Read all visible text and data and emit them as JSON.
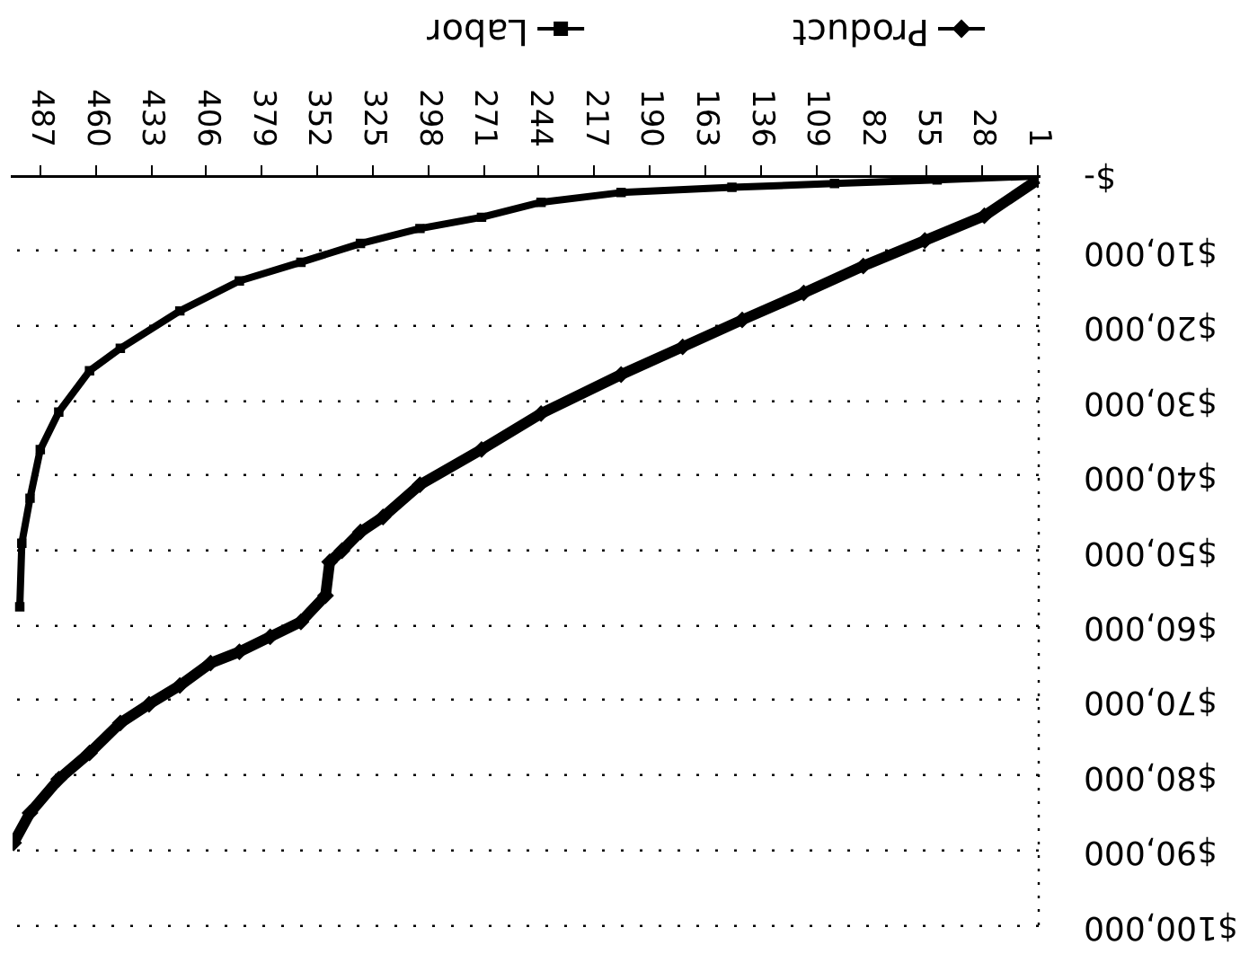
{
  "chart_data": {
    "type": "line",
    "xlim": [
      500.5,
      0.5
    ],
    "xticks": [
      1,
      28,
      55,
      82,
      109,
      136,
      163,
      190,
      217,
      244,
      271,
      298,
      325,
      352,
      379,
      406,
      433,
      460,
      487
    ],
    "ylim": [
      100000,
      0
    ],
    "yticks": [
      {
        "value": 0,
        "label": "$-"
      },
      {
        "value": 10000,
        "label": "$10,000"
      },
      {
        "value": 20000,
        "label": "$20,000"
      },
      {
        "value": 30000,
        "label": "$30,000"
      },
      {
        "value": 40000,
        "label": "$40,000"
      },
      {
        "value": 50000,
        "label": "$50,000"
      },
      {
        "value": 60000,
        "label": "$60,000"
      },
      {
        "value": 70000,
        "label": "$70,000"
      },
      {
        "value": 80000,
        "label": "$80,000"
      },
      {
        "value": 90000,
        "label": "$90,000"
      },
      {
        "value": 100000,
        "label": "$100,000"
      }
    ],
    "grid": "y",
    "legend": "top",
    "series": [
      {
        "name": "Product",
        "color": "#000000",
        "marker": "diamond",
        "x": [
          1,
          27,
          56,
          86,
          115,
          145,
          174,
          204,
          243,
          272,
          302,
          320,
          331,
          340,
          346,
          348,
          360,
          375,
          390,
          404,
          419,
          434,
          448,
          463,
          478,
          492,
          500
        ],
        "values": [
          500,
          5300,
          8600,
          12000,
          15600,
          19200,
          22800,
          26500,
          31700,
          36500,
          41200,
          45500,
          47500,
          50000,
          51500,
          56000,
          59500,
          61500,
          63500,
          65000,
          68000,
          70500,
          73000,
          77000,
          80500,
          85000,
          89000
        ]
      },
      {
        "name": "Labor",
        "color": "#000000",
        "marker": "square",
        "x": [
          1,
          50,
          100,
          150,
          204,
          243,
          272,
          302,
          331,
          360,
          390,
          419,
          448,
          463,
          478,
          487,
          492,
          496,
          497
        ],
        "values": [
          0,
          500,
          1000,
          1500,
          2200,
          3500,
          5500,
          7000,
          9000,
          11500,
          14000,
          18000,
          23000,
          26000,
          31500,
          36500,
          43000,
          49000,
          57500
        ]
      }
    ]
  }
}
